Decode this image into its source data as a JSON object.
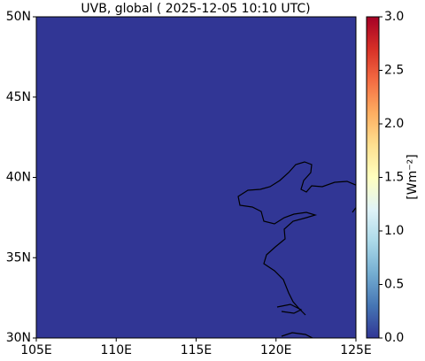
{
  "chart_data": {
    "type": "map",
    "title": "UVB, global ( 2025-12-05 10:10 UTC)",
    "values": [
      0
    ],
    "xlim": [
      105,
      125
    ],
    "xticks": [
      {
        "value": 105,
        "label": "105E"
      },
      {
        "value": 110,
        "label": "110E"
      },
      {
        "value": 115,
        "label": "115E"
      },
      {
        "value": 120,
        "label": "120E"
      },
      {
        "value": 125,
        "label": "125E"
      }
    ],
    "ylim": [
      30,
      50
    ],
    "yticks": [
      {
        "value": 30,
        "label": "30N"
      },
      {
        "value": 35,
        "label": "35N"
      },
      {
        "value": 40,
        "label": "40N"
      },
      {
        "value": 45,
        "label": "45N"
      },
      {
        "value": 50,
        "label": "50N"
      }
    ],
    "colorbar": {
      "label": "[Wm⁻²]",
      "lim": [
        0,
        3
      ],
      "ticks": [
        {
          "value": 0,
          "label": "0.0"
        },
        0.5,
        {
          "value": 1,
          "label": "1.0"
        },
        1.5,
        {
          "value": 2,
          "label": "2.0"
        },
        2.5,
        {
          "value": 3,
          "label": "3.0"
        }
      ],
      "colors": [
        "#313695",
        "#4575b4",
        "#74add1",
        "#abd9e9",
        "#e0f3f8",
        "#ffffbf",
        "#fee090",
        "#fdae61",
        "#f46d43",
        "#d73027",
        "#a50026"
      ]
    }
  }
}
